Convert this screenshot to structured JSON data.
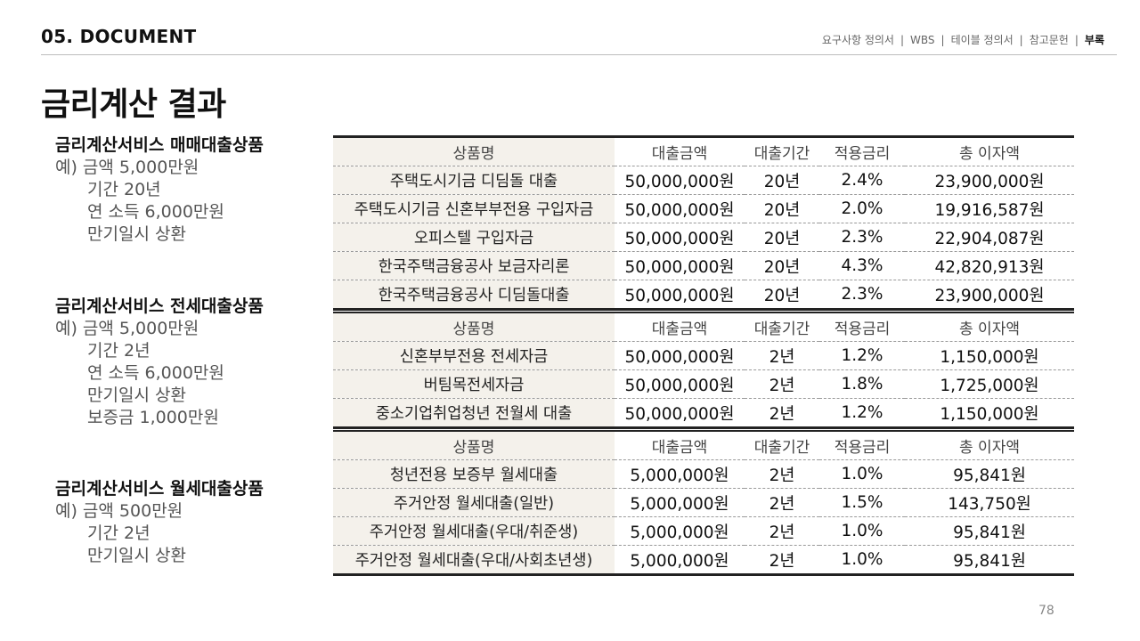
{
  "header": {
    "section_title": "05. DOCUMENT",
    "nav": [
      "요구사항 정의서",
      "WBS",
      "테이블 정의서",
      "참고문헌",
      "부록"
    ],
    "active_nav": "부록"
  },
  "page_title": "금리계산 결과",
  "blocks": [
    {
      "title": "금리계산서비스 매매대출상품",
      "lines": [
        "예) 금액 5,000만원",
        "기간 20년",
        "연 소득 6,000만원",
        "만기일시 상환"
      ],
      "table": {
        "headers": [
          "상품명",
          "대출금액",
          "대출기간",
          "적용금리",
          "총 이자액"
        ],
        "rows": [
          [
            "주택도시기금 디딤돌 대출",
            "50,000,000원",
            "20년",
            "2.4%",
            "23,900,000원"
          ],
          [
            "주택도시기금 신혼부부전용 구입자금",
            "50,000,000원",
            "20년",
            "2.0%",
            "19,916,587원"
          ],
          [
            "오피스텔 구입자금",
            "50,000,000원",
            "20년",
            "2.3%",
            "22,904,087원"
          ],
          [
            "한국주택금융공사 보금자리론",
            "50,000,000원",
            "20년",
            "4.3%",
            "42,820,913원"
          ],
          [
            "한국주택금융공사 디딤돌대출",
            "50,000,000원",
            "20년",
            "2.3%",
            "23,900,000원"
          ]
        ]
      }
    },
    {
      "title": "금리계산서비스 전세대출상품",
      "lines": [
        "예) 금액 5,000만원",
        "기간 2년",
        "연 소득 6,000만원",
        "만기일시 상환",
        "보증금 1,000만원"
      ],
      "table": {
        "headers": [
          "상품명",
          "대출금액",
          "대출기간",
          "적용금리",
          "총 이자액"
        ],
        "rows": [
          [
            "신혼부부전용 전세자금",
            "50,000,000원",
            "2년",
            "1.2%",
            "1,150,000원"
          ],
          [
            "버팀목전세자금",
            "50,000,000원",
            "2년",
            "1.8%",
            "1,725,000원"
          ],
          [
            "중소기업취업청년 전월세 대출",
            "50,000,000원",
            "2년",
            "1.2%",
            "1,150,000원"
          ]
        ]
      }
    },
    {
      "title": "금리계산서비스 월세대출상품",
      "lines": [
        "예) 금액 500만원",
        "기간 2년",
        "만기일시 상환"
      ],
      "table": {
        "headers": [
          "상품명",
          "대출금액",
          "대출기간",
          "적용금리",
          "총 이자액"
        ],
        "rows": [
          [
            "청년전용 보증부 월세대출",
            "5,000,000원",
            "2년",
            "1.0%",
            "95,841원"
          ],
          [
            "주거안정 월세대출(일반)",
            "5,000,000원",
            "2년",
            "1.5%",
            "143,750원"
          ],
          [
            "주거안정 월세대출(우대/취준생)",
            "5,000,000원",
            "2년",
            "1.0%",
            "95,841원"
          ],
          [
            "주거안정 월세대출(우대/사회초년생)",
            "5,000,000원",
            "2년",
            "1.0%",
            "95,841원"
          ]
        ]
      }
    }
  ],
  "page_number": "78"
}
